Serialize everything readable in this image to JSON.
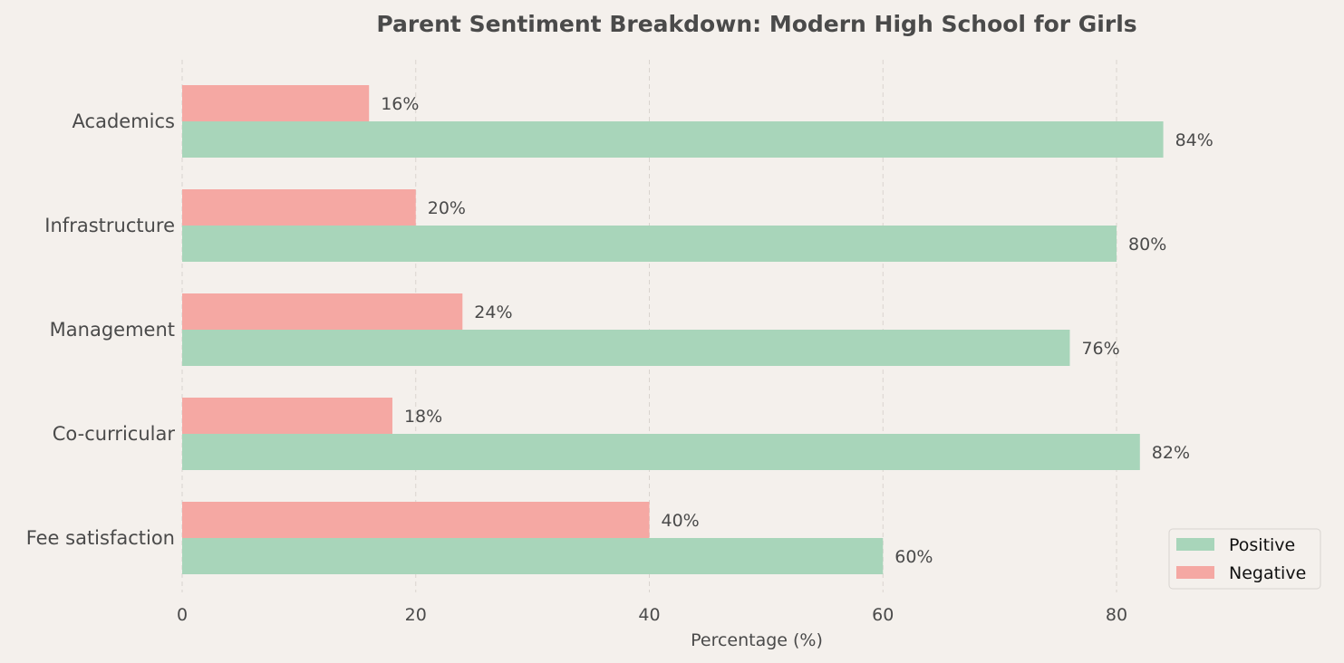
{
  "chart_data": {
    "type": "bar",
    "orientation": "horizontal",
    "title": "Parent Sentiment Breakdown: Modern High School for Girls",
    "xlabel": "Percentage (%)",
    "ylabel": "",
    "categories": [
      "Academics",
      "Infrastructure",
      "Management",
      "Co-curricular",
      "Fee satisfaction"
    ],
    "series": [
      {
        "name": "Positive",
        "values": [
          84,
          80,
          76,
          82,
          60
        ],
        "color": "#a8d5ba"
      },
      {
        "name": "Negative",
        "values": [
          16,
          20,
          24,
          18,
          40
        ],
        "color": "#f5a8a3"
      }
    ],
    "data_label_suffix": "%",
    "xlim": [
      0,
      98
    ],
    "xticks": [
      0,
      20,
      40,
      60,
      80
    ],
    "grid": "x dashed",
    "legend_position": "bottom-right"
  }
}
